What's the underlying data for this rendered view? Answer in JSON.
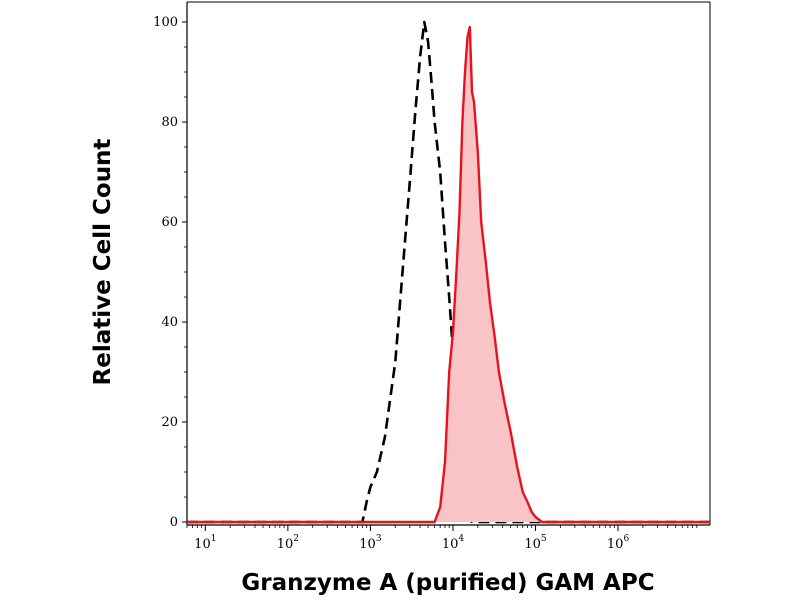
{
  "chart_data": {
    "type": "area",
    "xlabel": "Granzyme A (purified) GAM APC",
    "ylabel": "Relative Cell Count",
    "xscale": "log",
    "xlim": [
      6,
      13000000
    ],
    "ylim": [
      0,
      100
    ],
    "grid": false,
    "x_ticks": [
      {
        "base": "10",
        "exp": "1"
      },
      {
        "base": "10",
        "exp": "2"
      },
      {
        "base": "10",
        "exp": "3"
      },
      {
        "base": "10",
        "exp": "4"
      },
      {
        "base": "10",
        "exp": "5"
      },
      {
        "base": "10",
        "exp": "6"
      }
    ],
    "y_ticks": [
      "0",
      "20",
      "40",
      "60",
      "80",
      "100"
    ],
    "colors": {
      "stained_line": "#e8121f",
      "stained_fill": "#f9c4c6",
      "control_line": "#000000"
    },
    "series": [
      {
        "style": "dashed",
        "x": [
          6,
          800,
          900,
          1000,
          1200,
          1500,
          2000,
          2500,
          3000,
          3500,
          4000,
          4500,
          5000,
          5500,
          6000,
          7000,
          8000,
          9000,
          10000,
          11000,
          12000,
          13000,
          14000,
          15000,
          15800,
          17000,
          13000000
        ],
        "y": [
          0,
          0,
          4,
          7,
          10,
          17,
          32,
          52,
          68,
          82,
          93,
          100,
          96,
          88,
          80,
          70,
          56,
          45,
          34,
          25,
          16,
          10,
          5,
          3,
          1,
          0,
          0
        ]
      },
      {
        "style": "solid-filled",
        "x": [
          6,
          6000,
          7000,
          8000,
          9000,
          10000,
          11000,
          12000,
          13000,
          14000,
          15000,
          16000,
          17000,
          18000,
          20000,
          22000,
          25000,
          28000,
          32000,
          36000,
          42000,
          50000,
          60000,
          70000,
          80000,
          90000,
          100000,
          120000,
          13000000
        ],
        "y": [
          0,
          0,
          3,
          12,
          30,
          38,
          50,
          62,
          80,
          90,
          97,
          99,
          86,
          84,
          74,
          60,
          52,
          44,
          37,
          30,
          24,
          18,
          11,
          6,
          4,
          2,
          1,
          0,
          0
        ]
      }
    ]
  }
}
